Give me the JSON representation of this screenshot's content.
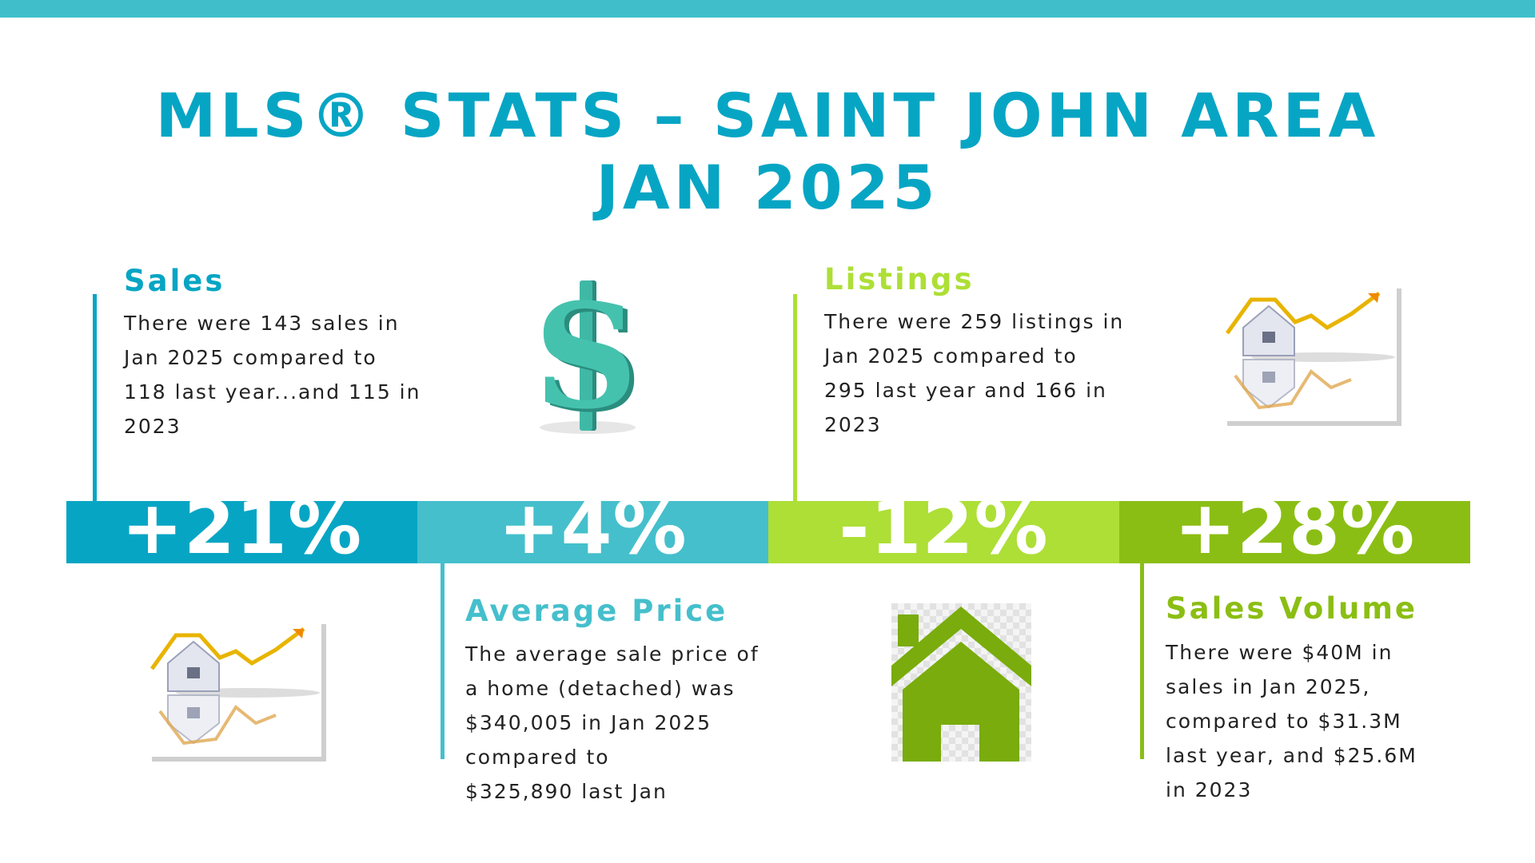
{
  "title": {
    "line1": "MLS® STATS – SAINT JOHN AREA",
    "line2": "JAN 2025"
  },
  "colors": {
    "top_bar": "#40bfcb",
    "title": "#07a5c4",
    "sales": "#07a5c4",
    "average_price": "#45bfcc",
    "listings": "#addf36",
    "sales_volume": "#8bbe14",
    "house_icon": "#79ac0c",
    "dollar_icon": "#3fb9a6"
  },
  "sales": {
    "heading": "Sales",
    "lines": [
      "There were 143 sales in",
      "Jan 2025 compared to",
      "118 last year...and 115 in",
      "2023"
    ],
    "change": "+21%",
    "icon": "house-growth-chart-icon"
  },
  "average_price": {
    "heading": "Average Price",
    "lines": [
      "The average sale price of",
      "a home (detached) was",
      "$340,005 in Jan 2025",
      "compared to",
      "$325,890 last Jan"
    ],
    "change": "+4%",
    "icon": "dollar-sign-icon"
  },
  "listings": {
    "heading": "Listings",
    "lines": [
      "There were 259 listings in",
      "Jan 2025 compared to",
      "295 last year and 166 in",
      "2023"
    ],
    "change": "-12%",
    "icon": "house-icon"
  },
  "sales_volume": {
    "heading": "Sales Volume",
    "lines": [
      "There were $40M in",
      "sales in Jan 2025,",
      "compared to $31.3M",
      "last year, and $25.6M",
      "in 2023"
    ],
    "change": "+28%",
    "icon": "house-growth-chart-icon"
  }
}
